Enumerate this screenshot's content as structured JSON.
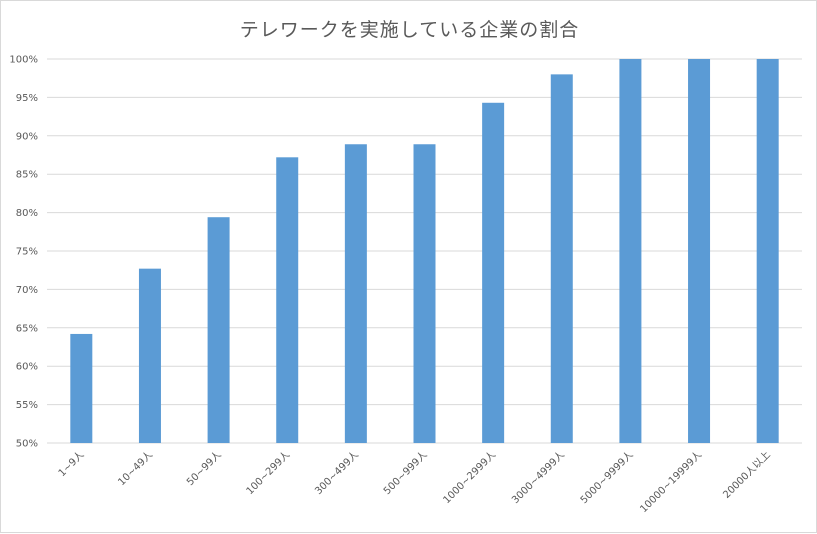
{
  "chart_data": {
    "type": "bar",
    "title": "テレワークを実施している企業の割合",
    "xlabel": "",
    "ylabel": "",
    "categories": [
      "1~9人",
      "10~49人",
      "50~99人",
      "100~299人",
      "300~499人",
      "500~999人",
      "1000~2999人",
      "3000~4999人",
      "5000~9999人",
      "10000~19999人",
      "20000人以上"
    ],
    "values": [
      64.2,
      72.7,
      79.4,
      87.2,
      88.9,
      88.9,
      94.3,
      98.0,
      100,
      100,
      100
    ],
    "ylim": [
      50,
      100
    ],
    "yticks": [
      "50%",
      "55%",
      "60%",
      "65%",
      "70%",
      "75%",
      "80%",
      "85%",
      "90%",
      "95%",
      "100%"
    ],
    "ytick_values": [
      50,
      55,
      60,
      65,
      70,
      75,
      80,
      85,
      90,
      95,
      100
    ],
    "grid": true,
    "legend": "none",
    "bar_color": "#5b9bd5"
  }
}
